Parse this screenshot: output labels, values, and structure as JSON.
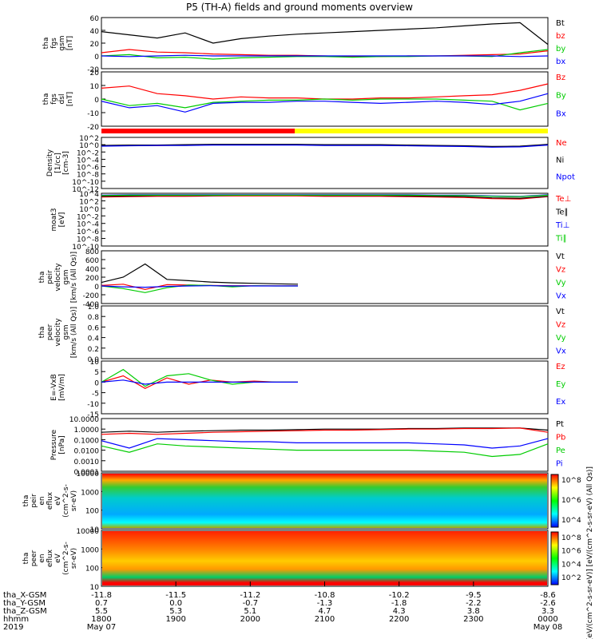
{
  "title": "P5 (TH-A) fields and ground moments overview",
  "colors": {
    "black": "#000000",
    "red": "#ff0000",
    "green": "#00cc00",
    "blue": "#0000ff",
    "yellow": "#ffff00"
  },
  "x_axis": {
    "ticks": [
      "1800",
      "1900",
      "2000",
      "2100",
      "2200",
      "2300",
      "0000"
    ],
    "rows": [
      {
        "label": "tha_X-GSM",
        "values": [
          "-11.8",
          "-11.5",
          "-11.2",
          "-10.8",
          "-10.2",
          "-9.5",
          "-8.6"
        ]
      },
      {
        "label": "tha_Y-GSM",
        "values": [
          "0.7",
          "0.0",
          "-0.7",
          "-1.3",
          "-1.8",
          "-2.2",
          "-2.6"
        ]
      },
      {
        "label": "tha_Z-GSM",
        "values": [
          "5.5",
          "5.3",
          "5.1",
          "4.7",
          "4.3",
          "3.8",
          "3.3"
        ]
      },
      {
        "label": "hhmm",
        "values": [
          "1800",
          "1900",
          "2000",
          "2100",
          "2200",
          "2300",
          "0000"
        ]
      },
      {
        "label": "2019",
        "values": [
          "May 07",
          "",
          "",
          "",
          "",
          "",
          "May 08"
        ]
      }
    ]
  },
  "chart_data": [
    {
      "type": "line",
      "panel": "fgs-gsm",
      "ylabel": [
        "tha",
        "fgs",
        "gsm",
        "[nT]"
      ],
      "ylim": [
        -20,
        60
      ],
      "ticks": [
        "60",
        "40",
        "20",
        "0",
        "-20"
      ],
      "series": [
        {
          "name": "Bt",
          "color": "#000000",
          "values": [
            38,
            33,
            28,
            36,
            20,
            27,
            31,
            34,
            36,
            38,
            40,
            42,
            44,
            47,
            50,
            52,
            18
          ]
        },
        {
          "name": "bz",
          "color": "#ff0000",
          "values": [
            5,
            10,
            6,
            5,
            3,
            2,
            1,
            1,
            0,
            -1,
            -1,
            0,
            0,
            1,
            2,
            3,
            8
          ]
        },
        {
          "name": "by",
          "color": "#00cc00",
          "values": [
            0,
            2,
            -3,
            -2,
            -5,
            -3,
            -2,
            -1,
            -1,
            -2,
            -1,
            -1,
            0,
            0,
            -1,
            5,
            10
          ]
        },
        {
          "name": "bx",
          "color": "#0000ff",
          "values": [
            0,
            -1,
            0,
            1,
            0,
            0,
            0,
            0,
            0,
            0,
            0,
            0,
            0,
            0,
            0,
            -1,
            0
          ]
        }
      ]
    },
    {
      "type": "line",
      "panel": "fgs-dsl",
      "ylabel": [
        "tha",
        "fgs",
        "dsl",
        "[nT]"
      ],
      "ylim": [
        -25,
        25
      ],
      "ticks": [
        "20",
        "10",
        "0",
        "-10",
        "-20"
      ],
      "series": [
        {
          "name": "Bz",
          "color": "#ff0000",
          "values": [
            10,
            12,
            5,
            3,
            0,
            2,
            1,
            1,
            0,
            0,
            1,
            1,
            2,
            3,
            4,
            8,
            14
          ]
        },
        {
          "name": "By",
          "color": "#00cc00",
          "values": [
            0,
            -6,
            -4,
            -8,
            -3,
            -2,
            -1,
            -1,
            0,
            -1,
            0,
            0,
            0,
            -1,
            -2,
            -10,
            -4
          ]
        },
        {
          "name": "Bx",
          "color": "#0000ff",
          "values": [
            -2,
            -8,
            -6,
            -12,
            -4,
            -3,
            -3,
            -2,
            -2,
            -3,
            -4,
            -3,
            -2,
            -3,
            -5,
            -2,
            5
          ]
        }
      ]
    },
    {
      "type": "line",
      "panel": "density",
      "ylabel": [
        "Density",
        "[1/cc]",
        "[cm-3]"
      ],
      "ylim": [
        -12,
        2
      ],
      "ylog": true,
      "ticks": [
        "10^2",
        "10^0",
        "10^-2",
        "10^-4",
        "10^-6",
        "10^-8",
        "10^-10",
        "10^-12"
      ],
      "series": [
        {
          "name": "Ne",
          "color": "#ff0000",
          "values": [
            -0.3,
            -0.2,
            -0.2,
            -0.1,
            0,
            0,
            0,
            0,
            -0.1,
            -0.1,
            -0.1,
            -0.2,
            -0.3,
            -0.4,
            -0.6,
            -0.5,
            0
          ]
        },
        {
          "name": "Ni",
          "color": "#000000",
          "values": [
            -0.2,
            -0.1,
            -0.1,
            0,
            0.1,
            0.1,
            0.1,
            0.1,
            0,
            0,
            0,
            -0.1,
            -0.2,
            -0.3,
            -0.5,
            -0.4,
            0.1
          ]
        },
        {
          "name": "Npot",
          "color": "#0000ff",
          "values": [
            -0.4,
            -0.3,
            -0.2,
            -0.2,
            -0.1,
            -0.1,
            -0.1,
            -0.1,
            -0.2,
            -0.2,
            -0.2,
            -0.3,
            -0.4,
            -0.5,
            -0.7,
            -0.6,
            -0.1
          ]
        }
      ]
    },
    {
      "type": "line",
      "panel": "temperature",
      "ylabel": [
        "moat3",
        "[eV]"
      ],
      "ylim": [
        -10,
        4
      ],
      "ylog": true,
      "ticks": [
        "10^4",
        "10^2",
        "10^0",
        "10^-2",
        "10^-4",
        "10^-6",
        "10^-8",
        "10^-10"
      ],
      "series": [
        {
          "name": "Te⊥",
          "color": "#ff0000",
          "values": [
            3,
            3.1,
            3.2,
            3.2,
            3.3,
            3.3,
            3.3,
            3.3,
            3.2,
            3.2,
            3.2,
            3.1,
            3.0,
            2.9,
            2.6,
            2.5,
            3.1
          ]
        },
        {
          "name": "Te∥",
          "color": "#000000",
          "values": [
            3.2,
            3.3,
            3.4,
            3.4,
            3.4,
            3.5,
            3.5,
            3.5,
            3.4,
            3.4,
            3.4,
            3.3,
            3.2,
            3.1,
            2.8,
            2.7,
            3.2
          ]
        },
        {
          "name": "Ti⊥",
          "color": "#0000ff",
          "values": [
            3.5,
            3.6,
            3.6,
            3.6,
            3.6,
            3.6,
            3.6,
            3.6,
            3.6,
            3.6,
            3.6,
            3.6,
            3.5,
            3.5,
            3.3,
            3.2,
            3.6
          ]
        },
        {
          "name": "Ti∥",
          "color": "#00cc00",
          "values": [
            3.4,
            3.5,
            3.5,
            3.5,
            3.5,
            3.5,
            3.5,
            3.5,
            3.5,
            3.5,
            3.5,
            3.5,
            3.4,
            3.4,
            3.2,
            3.1,
            3.5
          ]
        }
      ]
    },
    {
      "type": "line",
      "panel": "peir-velocity",
      "ylabel": [
        "tha",
        "peir",
        "velocity",
        "gsm",
        "[km/s (All Qs)]"
      ],
      "ylim": [
        -400,
        800
      ],
      "ticks": [
        "800",
        "600",
        "400",
        "200",
        "0",
        "-200",
        "-400"
      ],
      "xmax_fraction": 0.44,
      "series": [
        {
          "name": "Vt",
          "color": "#000000",
          "values": [
            80,
            200,
            500,
            150,
            120,
            90,
            70,
            60,
            50,
            40
          ]
        },
        {
          "name": "Vz",
          "color": "#ff0000",
          "values": [
            10,
            40,
            -80,
            30,
            20,
            10,
            5,
            5,
            3,
            2
          ]
        },
        {
          "name": "Vy",
          "color": "#00cc00",
          "values": [
            0,
            -60,
            -150,
            -40,
            20,
            10,
            -20,
            5,
            0,
            0
          ]
        },
        {
          "name": "Vx",
          "color": "#0000ff",
          "values": [
            0,
            -20,
            -30,
            -10,
            0,
            5,
            0,
            0,
            0,
            0
          ]
        }
      ]
    },
    {
      "type": "line",
      "panel": "peer-velocity",
      "ylabel": [
        "tha",
        "peer",
        "velocity",
        "gsm",
        "[km/s (All Qs)]"
      ],
      "ylim": [
        0,
        1
      ],
      "ticks": [
        "1.0",
        "0.8",
        "0.6",
        "0.4",
        "0.2",
        "0.0"
      ],
      "series": [
        {
          "name": "Vt",
          "color": "#000000",
          "values": []
        },
        {
          "name": "Vz",
          "color": "#ff0000",
          "values": []
        },
        {
          "name": "Vy",
          "color": "#00cc00",
          "values": []
        },
        {
          "name": "Vx",
          "color": "#0000ff",
          "values": []
        }
      ]
    },
    {
      "type": "line",
      "panel": "efield",
      "ylabel": [
        "E=-VxB",
        "[mV/m]"
      ],
      "ylim": [
        -15,
        10
      ],
      "ticks": [
        "10",
        "5",
        "0",
        "-5",
        "-10",
        "-15"
      ],
      "xmax_fraction": 0.44,
      "series": [
        {
          "name": "Ez",
          "color": "#ff0000",
          "values": [
            0,
            3,
            -3,
            2,
            -1,
            1,
            0,
            0.5,
            0,
            0
          ]
        },
        {
          "name": "Ey",
          "color": "#00cc00",
          "values": [
            0,
            6,
            -2,
            3,
            4,
            1,
            -1,
            0,
            0,
            0
          ]
        },
        {
          "name": "Ex",
          "color": "#0000ff",
          "values": [
            0,
            1,
            -1,
            0,
            0,
            0,
            0,
            0,
            0,
            0
          ]
        }
      ]
    },
    {
      "type": "line",
      "panel": "pressure",
      "ylabel": [
        "Pressure",
        "[nPa]"
      ],
      "ylim": [
        -4,
        1
      ],
      "ylog": true,
      "ticks": [
        "10.0000",
        "1.0000",
        "0.1000",
        "0.0100",
        "0.0010",
        "0.0001"
      ],
      "series": [
        {
          "name": "Pt",
          "color": "#000000",
          "values": [
            -0.3,
            -0.2,
            -0.3,
            -0.2,
            -0.15,
            -0.1,
            -0.1,
            -0.05,
            0,
            0,
            0,
            0.05,
            0.05,
            0.1,
            0.1,
            0.1,
            -0.1
          ]
        },
        {
          "name": "Pb",
          "color": "#ff0000",
          "values": [
            -0.5,
            -0.4,
            -0.5,
            -0.4,
            -0.3,
            -0.25,
            -0.2,
            -0.15,
            -0.1,
            -0.1,
            -0.05,
            0,
            0,
            0.05,
            0.05,
            0.1,
            -0.3
          ]
        },
        {
          "name": "Pe",
          "color": "#00cc00",
          "values": [
            -1.6,
            -2.2,
            -1.4,
            -1.6,
            -1.7,
            -1.8,
            -1.9,
            -2.0,
            -2.0,
            -2.0,
            -2.0,
            -2.0,
            -2.1,
            -2.2,
            -2.6,
            -2.4,
            -1.4
          ]
        },
        {
          "name": "Pi",
          "color": "#0000ff",
          "values": [
            -1.1,
            -1.8,
            -0.9,
            -1.0,
            -1.1,
            -1.2,
            -1.2,
            -1.3,
            -1.3,
            -1.3,
            -1.3,
            -1.3,
            -1.4,
            -1.5,
            -1.8,
            -1.6,
            -0.9
          ]
        }
      ]
    },
    {
      "type": "heatmap",
      "panel": "peir-eflux",
      "ylabel": [
        "tha",
        "peir",
        "en",
        "eflux",
        "eV",
        "(cm^2-s-",
        "sr-eV)"
      ],
      "ticks": [
        "10000",
        "1000",
        "100",
        "10"
      ],
      "colorbar_ticks": [
        "10^8",
        "10^6",
        "10^4"
      ]
    },
    {
      "type": "heatmap",
      "panel": "peer-eflux",
      "ylabel": [
        "tha",
        "peer",
        "en",
        "eflux",
        "eV",
        "(cm^2-s-",
        "sr-eV)"
      ],
      "ticks": [
        "10000",
        "1000",
        "100",
        "10"
      ],
      "colorbar_ticks": [
        "10^8",
        "10^6",
        "10^4",
        "10^2"
      ]
    }
  ],
  "colorbar_label": "[eV/(cm^2-s-sr-eV)] [eV/(cm^2-s-sr-eV) (All Qs)]"
}
